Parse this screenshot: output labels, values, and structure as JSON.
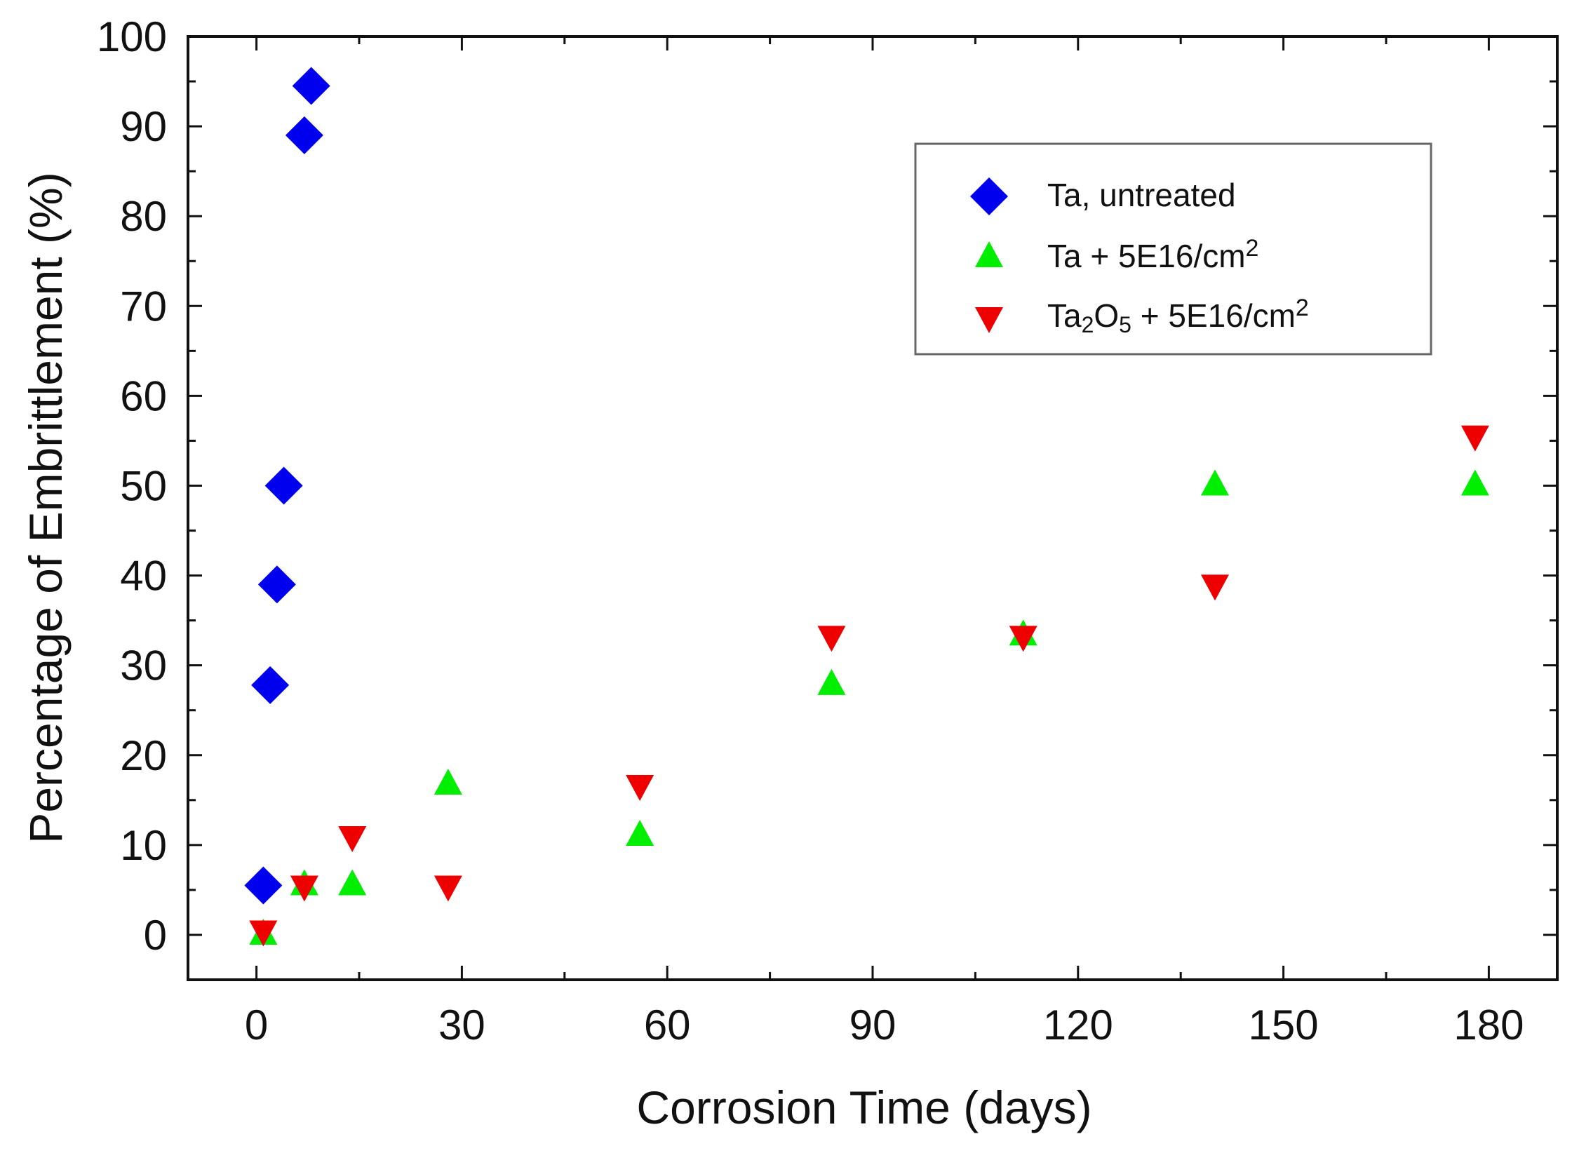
{
  "chart_data": {
    "type": "scatter",
    "title": "",
    "xlabel": "Corrosion Time (days)",
    "ylabel": "Percentage of Embrittlement (%)",
    "xlim": [
      -10,
      190
    ],
    "ylim": [
      -5,
      100
    ],
    "xticks": [
      0,
      30,
      60,
      90,
      120,
      150,
      180
    ],
    "xticks_minor": [
      15,
      45,
      75,
      105,
      135,
      165
    ],
    "yticks": [
      0,
      10,
      20,
      30,
      40,
      50,
      60,
      70,
      80,
      90,
      100
    ],
    "yticks_minor": [
      5,
      15,
      25,
      35,
      45,
      55,
      65,
      75,
      85,
      95
    ],
    "grid": false,
    "legend_position": "top-right",
    "series": [
      {
        "name": "Ta, untreated",
        "label_main": "Ta, untreated",
        "marker": "diamond",
        "color": "#0000ee",
        "points": [
          {
            "x": 1,
            "y": 5.5
          },
          {
            "x": 2,
            "y": 27.8
          },
          {
            "x": 3,
            "y": 39
          },
          {
            "x": 4,
            "y": 50
          },
          {
            "x": 7,
            "y": 89
          },
          {
            "x": 8,
            "y": 94.5
          }
        ]
      },
      {
        "name": "Ta + 5E16/cm2",
        "label_main": "Ta + 5E16/cm",
        "label_sup": "2",
        "marker": "triangle-up",
        "color": "#00ee00",
        "points": [
          {
            "x": 1,
            "y": 0
          },
          {
            "x": 7,
            "y": 5.5
          },
          {
            "x": 14,
            "y": 5.5
          },
          {
            "x": 28,
            "y": 16.7
          },
          {
            "x": 56,
            "y": 11
          },
          {
            "x": 84,
            "y": 27.8
          },
          {
            "x": 112,
            "y": 33.3
          },
          {
            "x": 140,
            "y": 50
          },
          {
            "x": 178,
            "y": 50
          }
        ]
      },
      {
        "name": "Ta2O5 + 5E16/cm2",
        "label_parts": [
          "Ta",
          "2",
          "O",
          "5",
          " + 5E16/cm",
          "2"
        ],
        "marker": "triangle-down",
        "color": "#ee0000",
        "points": [
          {
            "x": 1,
            "y": 0.5
          },
          {
            "x": 7,
            "y": 5.5
          },
          {
            "x": 14,
            "y": 11
          },
          {
            "x": 28,
            "y": 5.5
          },
          {
            "x": 56,
            "y": 16.7
          },
          {
            "x": 84,
            "y": 33.3
          },
          {
            "x": 112,
            "y": 33.3
          },
          {
            "x": 140,
            "y": 39
          },
          {
            "x": 178,
            "y": 55.6
          }
        ]
      }
    ]
  }
}
